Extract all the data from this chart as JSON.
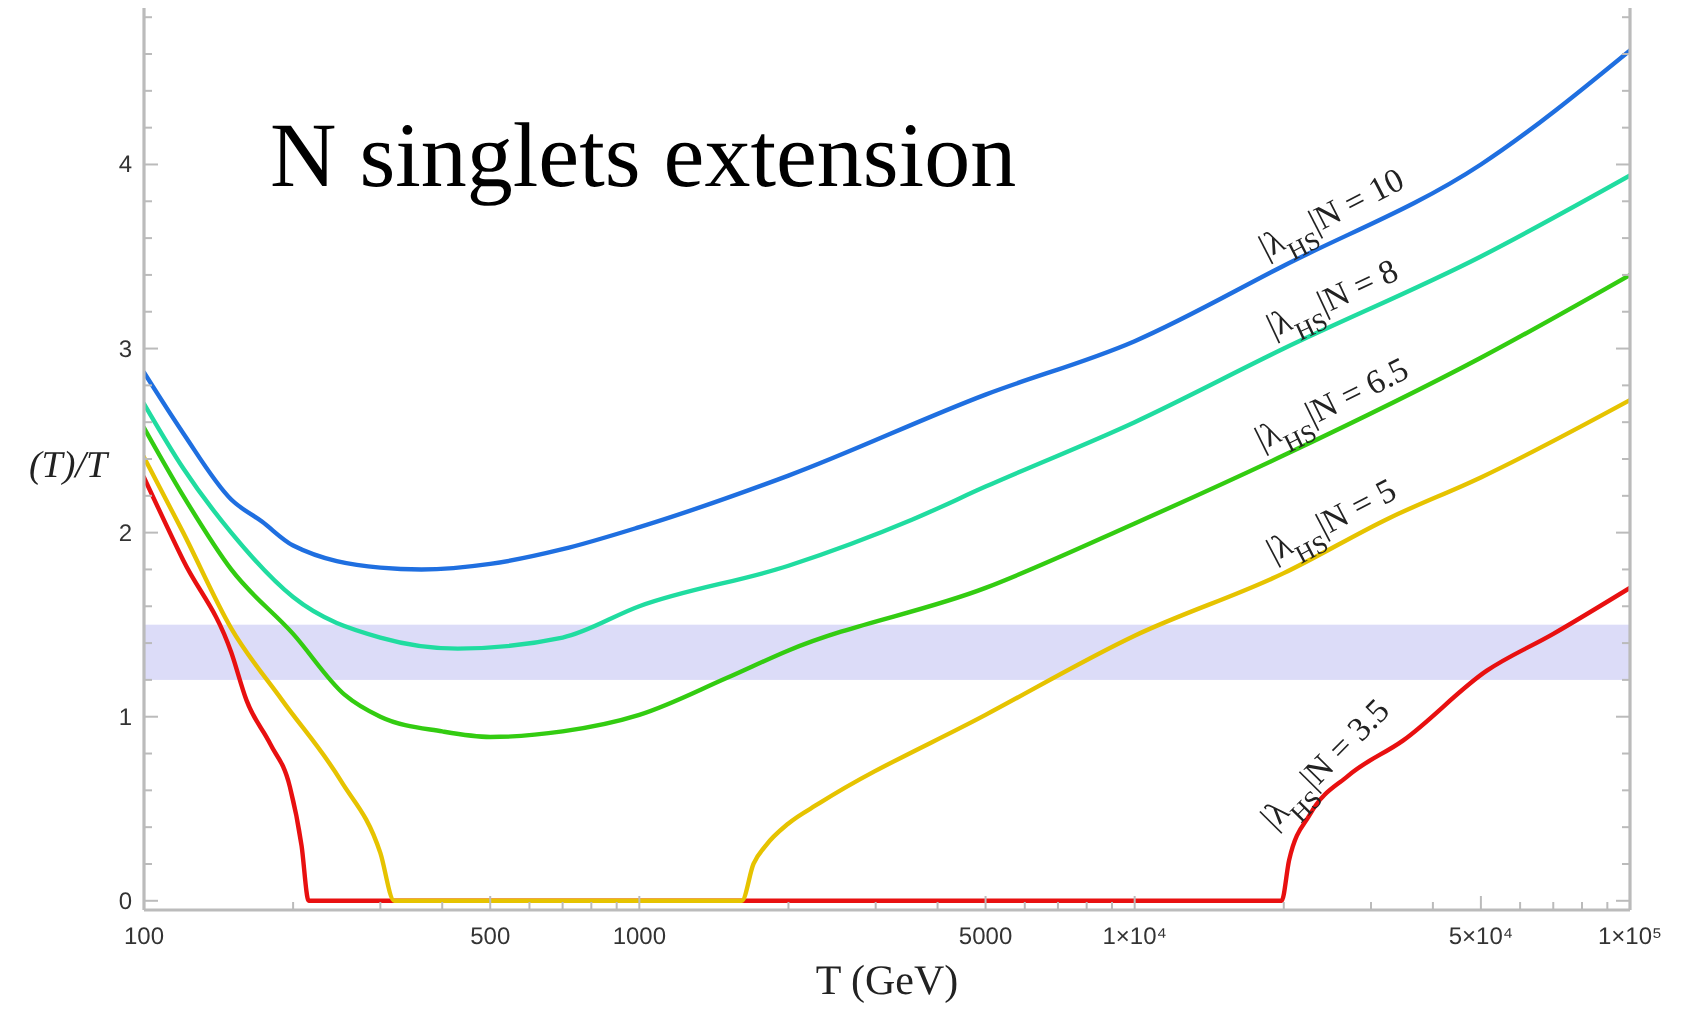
{
  "chart_data": {
    "type": "line",
    "title": "N singlets extension",
    "xlabel": "T (GeV)",
    "ylabel": "(T)/T",
    "log": "x",
    "grid": false,
    "marker": "none",
    "line_style": "solid",
    "xlim": [
      100,
      100000
    ],
    "ylim": [
      -0.05,
      4.85
    ],
    "xticks": [
      100,
      {
        "value": 200,
        "label": null
      },
      {
        "value": 300,
        "label": null
      },
      {
        "value": 400,
        "label": null
      },
      500,
      {
        "value": 600,
        "label": null
      },
      {
        "value": 700,
        "label": null
      },
      {
        "value": 800,
        "label": null
      },
      {
        "value": 900,
        "label": null
      },
      1000,
      {
        "value": 2000,
        "label": null
      },
      {
        "value": 3000,
        "label": null
      },
      {
        "value": 4000,
        "label": null
      },
      5000,
      {
        "value": 6000,
        "label": null
      },
      {
        "value": 7000,
        "label": null
      },
      {
        "value": 8000,
        "label": null
      },
      {
        "value": 9000,
        "label": null
      },
      {
        "value": 10000,
        "label": "1×10⁴"
      },
      {
        "value": 20000,
        "label": null
      },
      {
        "value": 30000,
        "label": null
      },
      {
        "value": 40000,
        "label": null
      },
      {
        "value": 50000,
        "label": "5×10⁴"
      },
      {
        "value": 60000,
        "label": null
      },
      {
        "value": 70000,
        "label": null
      },
      {
        "value": 80000,
        "label": null
      },
      {
        "value": 90000,
        "label": null
      },
      {
        "value": 100000,
        "label": "1×10⁵"
      }
    ],
    "yticks": [
      0,
      {
        "value": 0.2,
        "label": null
      },
      {
        "value": 0.4,
        "label": null
      },
      {
        "value": 0.6,
        "label": null
      },
      {
        "value": 0.8,
        "label": null
      },
      1,
      {
        "value": 1.2,
        "label": null
      },
      {
        "value": 1.4,
        "label": null
      },
      {
        "value": 1.6,
        "label": null
      },
      {
        "value": 1.8,
        "label": null
      },
      2,
      {
        "value": 2.2,
        "label": null
      },
      {
        "value": 2.4,
        "label": null
      },
      {
        "value": 2.6,
        "label": null
      },
      {
        "value": 2.8,
        "label": null
      },
      3,
      {
        "value": 3.2,
        "label": null
      },
      {
        "value": 3.4,
        "label": null
      },
      {
        "value": 3.6,
        "label": null
      },
      {
        "value": 3.8,
        "label": null
      },
      4,
      {
        "value": 4.2,
        "label": null
      },
      {
        "value": 4.4,
        "label": null
      },
      {
        "value": 4.6,
        "label": null
      },
      {
        "value": 4.8,
        "label": null
      }
    ],
    "bands": [
      {
        "axis": "y",
        "from": 1.2,
        "to": 1.5,
        "color": "#dcdcf8"
      }
    ],
    "series": [
      {
        "name": "|λ$_{HS}$|N = 3.5",
        "color": "#e81010",
        "x": [
          100,
          120,
          150,
          161,
          180,
          197,
          208,
          215,
          1000,
          10000,
          19800,
          20500,
          22600,
          27000,
          34800,
          51400,
          70000,
          100000
        ],
        "values": [
          2.3,
          1.85,
          1.35,
          1.09,
          0.85,
          0.62,
          0.3,
          0,
          0,
          0,
          0,
          0.22,
          0.47,
          0.68,
          0.87,
          1.25,
          1.45,
          1.7
        ]
      },
      {
        "name": "|λ$_{HS}$|N = 5",
        "color": "#e6c300",
        "x": [
          100,
          120,
          150,
          190,
          250,
          300,
          320,
          1000,
          1610,
          1700,
          1800,
          2000,
          2310,
          5000,
          10000,
          20000,
          32700,
          50000,
          100000
        ],
        "values": [
          2.41,
          2.0,
          1.48,
          1.09,
          0.65,
          0.26,
          0,
          0,
          0,
          0.2,
          0.3,
          0.42,
          0.53,
          1.01,
          1.44,
          1.78,
          2.08,
          2.3,
          2.72
        ]
      },
      {
        "name": "|λ$_{HS}$|N = 6.5",
        "color": "#33cc11",
        "x": [
          100,
          120,
          150,
          200,
          254,
          300,
          400,
          500,
          700,
          1000,
          1500,
          2000,
          5000,
          10000,
          20000,
          50000,
          100000
        ],
        "values": [
          2.57,
          2.2,
          1.8,
          1.45,
          1.12,
          1.0,
          0.92,
          0.89,
          0.92,
          1.01,
          1.21,
          1.36,
          1.7,
          2.05,
          2.42,
          2.95,
          3.4
        ]
      },
      {
        "name": "|λ$_{HS}$|N = 8",
        "color": "#20dca0",
        "x": [
          100,
          120,
          150,
          200,
          300,
          430,
          700,
          1000,
          2000,
          3550,
          5000,
          10000,
          20000,
          50000,
          100000
        ],
        "values": [
          2.7,
          2.35,
          2.0,
          1.65,
          1.43,
          1.37,
          1.43,
          1.6,
          1.82,
          2.07,
          2.25,
          2.6,
          3.0,
          3.5,
          3.94
        ]
      },
      {
        "name": "|λ$_{HS}$|N = 10",
        "color": "#1f6fe0",
        "x": [
          100,
          120,
          150,
          173,
          200,
          300,
          363,
          500,
          700,
          1000,
          2000,
          5000,
          10000,
          20000,
          50000,
          100000
        ],
        "values": [
          2.87,
          2.54,
          2.18,
          2.06,
          1.93,
          1.81,
          1.8,
          1.83,
          1.91,
          2.03,
          2.31,
          2.75,
          3.04,
          3.45,
          4.0,
          4.62
        ]
      }
    ]
  }
}
